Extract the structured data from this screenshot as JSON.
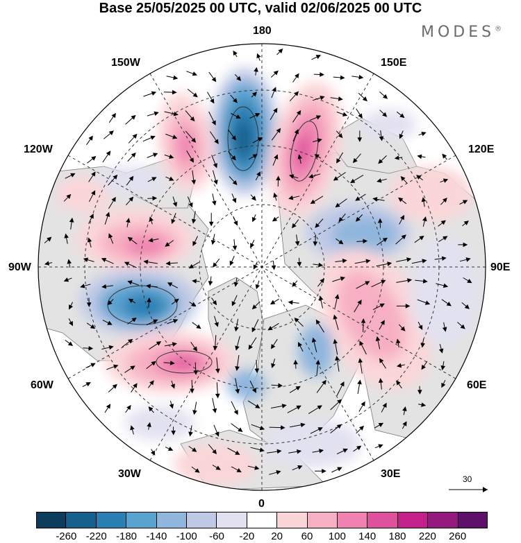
{
  "title": "Base 25/05/2025 00 UTC, valid 02/06/2025 00 UTC",
  "brand": "MODES",
  "brand_mark": "®",
  "longitude_labels": {
    "top": "180",
    "bottom": "0",
    "left": "90W",
    "right": "90E",
    "nw_upper": "150W",
    "nw_lower": "120W",
    "ne_upper": "150E",
    "ne_lower": "120E",
    "sw_upper": "60W",
    "sw_lower": "30W",
    "se_upper": "60E",
    "se_lower": "30E"
  },
  "reference_vector": {
    "label": "30"
  },
  "colorbar": {
    "colors": [
      "#0d3d5c",
      "#155f8c",
      "#2a7fb4",
      "#5aa3d0",
      "#8fb6dd",
      "#bfc9e6",
      "#e2e1f0",
      "#ffffff",
      "#fbd6d8",
      "#f7b0c3",
      "#ef82b0",
      "#e0519d",
      "#c4208c",
      "#951a7d",
      "#5e1168"
    ],
    "tick_labels": [
      "-260",
      "-220",
      "-180",
      "-140",
      "-100",
      "-60",
      "-20",
      "20",
      "60",
      "100",
      "140",
      "180",
      "220",
      "260"
    ]
  },
  "map_colors": {
    "land": "#e3e3e3",
    "ocean": "#ffffff",
    "coast": "#777777",
    "grid": "#333333"
  }
}
